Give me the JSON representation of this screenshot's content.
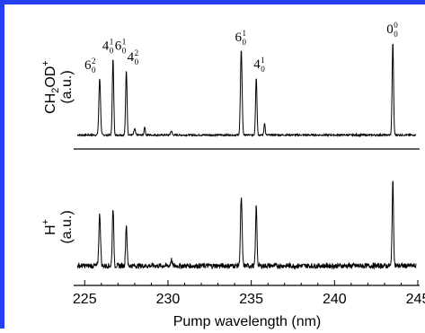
{
  "chart_data": {
    "type": "line",
    "xlabel": "Pump wavelength (nm)",
    "xlim": [
      224.5,
      245
    ],
    "x_ticks": [
      "225",
      "230",
      "235",
      "240",
      "245"
    ],
    "x_tick_values": [
      225,
      230,
      235,
      240,
      245
    ],
    "panels": [
      {
        "name": "top",
        "ylabel": {
          "main": "CH",
          "sub": "2",
          "rest": "OD",
          "sup": "+",
          "unit": "(a.u.)"
        },
        "baseline": 0.04,
        "noise": 0.008,
        "peaks": [
          {
            "x": 225.9,
            "h": 0.55,
            "w": 0.07
          },
          {
            "x": 226.7,
            "h": 0.74,
            "w": 0.06
          },
          {
            "x": 227.5,
            "h": 0.63,
            "w": 0.06
          },
          {
            "x": 228.0,
            "h": 0.06,
            "w": 0.06
          },
          {
            "x": 228.6,
            "h": 0.08,
            "w": 0.05
          },
          {
            "x": 230.2,
            "h": 0.04,
            "w": 0.06
          },
          {
            "x": 234.4,
            "h": 0.82,
            "w": 0.07
          },
          {
            "x": 235.3,
            "h": 0.56,
            "w": 0.06
          },
          {
            "x": 235.8,
            "h": 0.12,
            "w": 0.05
          },
          {
            "x": 243.5,
            "h": 0.9,
            "w": 0.06
          }
        ],
        "annotations": [
          {
            "x": 225.9,
            "parts": [
              "6",
              "0",
              "2"
            ]
          },
          {
            "x": 226.7,
            "parts": [
              "4",
              "0",
              "1",
              "6",
              "0",
              "1"
            ]
          },
          {
            "x": 227.5,
            "parts": [
              "4",
              "0",
              "2"
            ]
          },
          {
            "x": 234.4,
            "parts": [
              "6",
              "0",
              "1"
            ]
          },
          {
            "x": 235.3,
            "parts": [
              "4",
              "0",
              "1"
            ]
          },
          {
            "x": 243.5,
            "parts": [
              "0",
              "0",
              "0"
            ]
          }
        ]
      },
      {
        "name": "bottom",
        "ylabel": {
          "main": "H",
          "sup": "+",
          "unit": "(a.u.)"
        },
        "baseline": 0.06,
        "noise": 0.025,
        "peaks": [
          {
            "x": 225.9,
            "h": 0.5,
            "w": 0.07
          },
          {
            "x": 226.7,
            "h": 0.57,
            "w": 0.06
          },
          {
            "x": 227.5,
            "h": 0.4,
            "w": 0.06
          },
          {
            "x": 230.2,
            "h": 0.06,
            "w": 0.06
          },
          {
            "x": 234.4,
            "h": 0.66,
            "w": 0.07
          },
          {
            "x": 235.3,
            "h": 0.58,
            "w": 0.06
          },
          {
            "x": 243.5,
            "h": 0.82,
            "w": 0.06
          }
        ]
      }
    ],
    "colors": {
      "frame": "#2540f0",
      "line": "#000000"
    }
  }
}
